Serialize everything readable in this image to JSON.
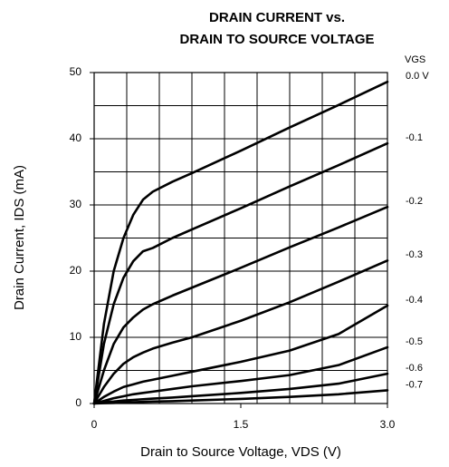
{
  "chart_data": {
    "type": "line",
    "title": [
      "DRAIN CURRENT vs.",
      "DRAIN TO SOURCE VOLTAGE"
    ],
    "xlabel": "Drain to Source Voltage, VDS (V)",
    "ylabel": "Drain Current, IDS (mA)",
    "legend_title": "VGS",
    "x": [
      0,
      0.1,
      0.2,
      0.3,
      0.4,
      0.5,
      0.6,
      0.8,
      1.0,
      1.5,
      2.0,
      2.5,
      3.0
    ],
    "series": [
      {
        "name": "0.0 V",
        "color": "#000000",
        "values": [
          0,
          12,
          20,
          25,
          28.5,
          30.8,
          32,
          33.5,
          34.8,
          38.2,
          41.7,
          45.1,
          48.6
        ]
      },
      {
        "name": "-0.1",
        "color": "#000000",
        "values": [
          0,
          9,
          15,
          19,
          21.5,
          23,
          23.5,
          25,
          26.3,
          29.5,
          32.8,
          36,
          39.3
        ]
      },
      {
        "name": "-0.2",
        "color": "#000000",
        "values": [
          0,
          5,
          9,
          11.5,
          13,
          14.2,
          15,
          16.3,
          17.5,
          20.5,
          23.6,
          26.6,
          29.7
        ]
      },
      {
        "name": "-0.3",
        "color": "#000000",
        "values": [
          0,
          2.5,
          4.5,
          6,
          7,
          7.7,
          8.3,
          9.2,
          10,
          12.5,
          15.3,
          18.4,
          21.6
        ]
      },
      {
        "name": "-0.4",
        "color": "#000000",
        "values": [
          0,
          1,
          1.8,
          2.5,
          2.9,
          3.3,
          3.6,
          4.2,
          4.8,
          6.3,
          8,
          10.5,
          14.8
        ]
      },
      {
        "name": "-0.5",
        "color": "#000000",
        "values": [
          0,
          0.4,
          0.8,
          1.1,
          1.4,
          1.6,
          1.8,
          2.2,
          2.6,
          3.4,
          4.3,
          5.8,
          8.5
        ]
      },
      {
        "name": "-0.6",
        "color": "#000000",
        "values": [
          0,
          0.2,
          0.3,
          0.45,
          0.55,
          0.65,
          0.75,
          0.9,
          1.1,
          1.6,
          2.2,
          3.0,
          4.5
        ]
      },
      {
        "name": "-0.7",
        "color": "#000000",
        "values": [
          0,
          0.05,
          0.1,
          0.15,
          0.2,
          0.25,
          0.3,
          0.35,
          0.45,
          0.7,
          1.0,
          1.4,
          2.0
        ]
      }
    ],
    "xlim": [
      0,
      3
    ],
    "ylim": [
      0,
      50
    ],
    "xticks": [
      0,
      1.5,
      {
        "value": 3,
        "label": "3.0"
      }
    ],
    "yticks": [
      0,
      10,
      20,
      30,
      40,
      50
    ],
    "grid": {
      "x_divisions": 9,
      "y_divisions": 10
    }
  }
}
